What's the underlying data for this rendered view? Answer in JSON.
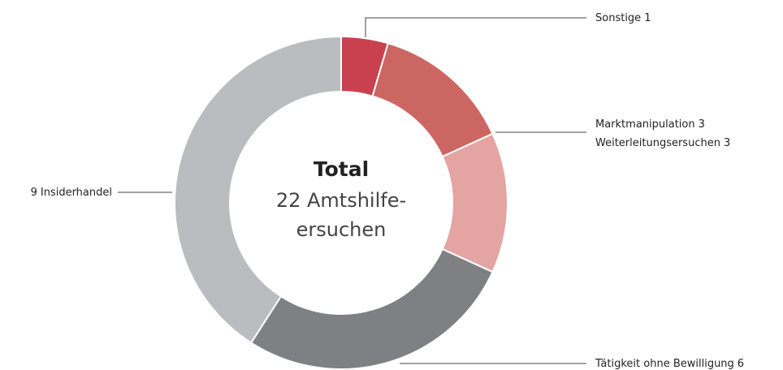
{
  "chart_data": {
    "type": "donut",
    "categories": [
      "Sonstige",
      "Marktmanipulation",
      "Weiterleitungsersuchen",
      "Tätigkeit ohne Bewilligung",
      "Insiderhandel"
    ],
    "values": [
      1,
      3,
      3,
      6,
      9
    ],
    "colors": [
      "#c9414f",
      "#cc6663",
      "#e3a4a2",
      "#7f8084",
      "#bbbcc0"
    ],
    "center_title": "Total",
    "center_text": [
      "22 Amtshilfe-",
      "ersuchen"
    ]
  }
}
